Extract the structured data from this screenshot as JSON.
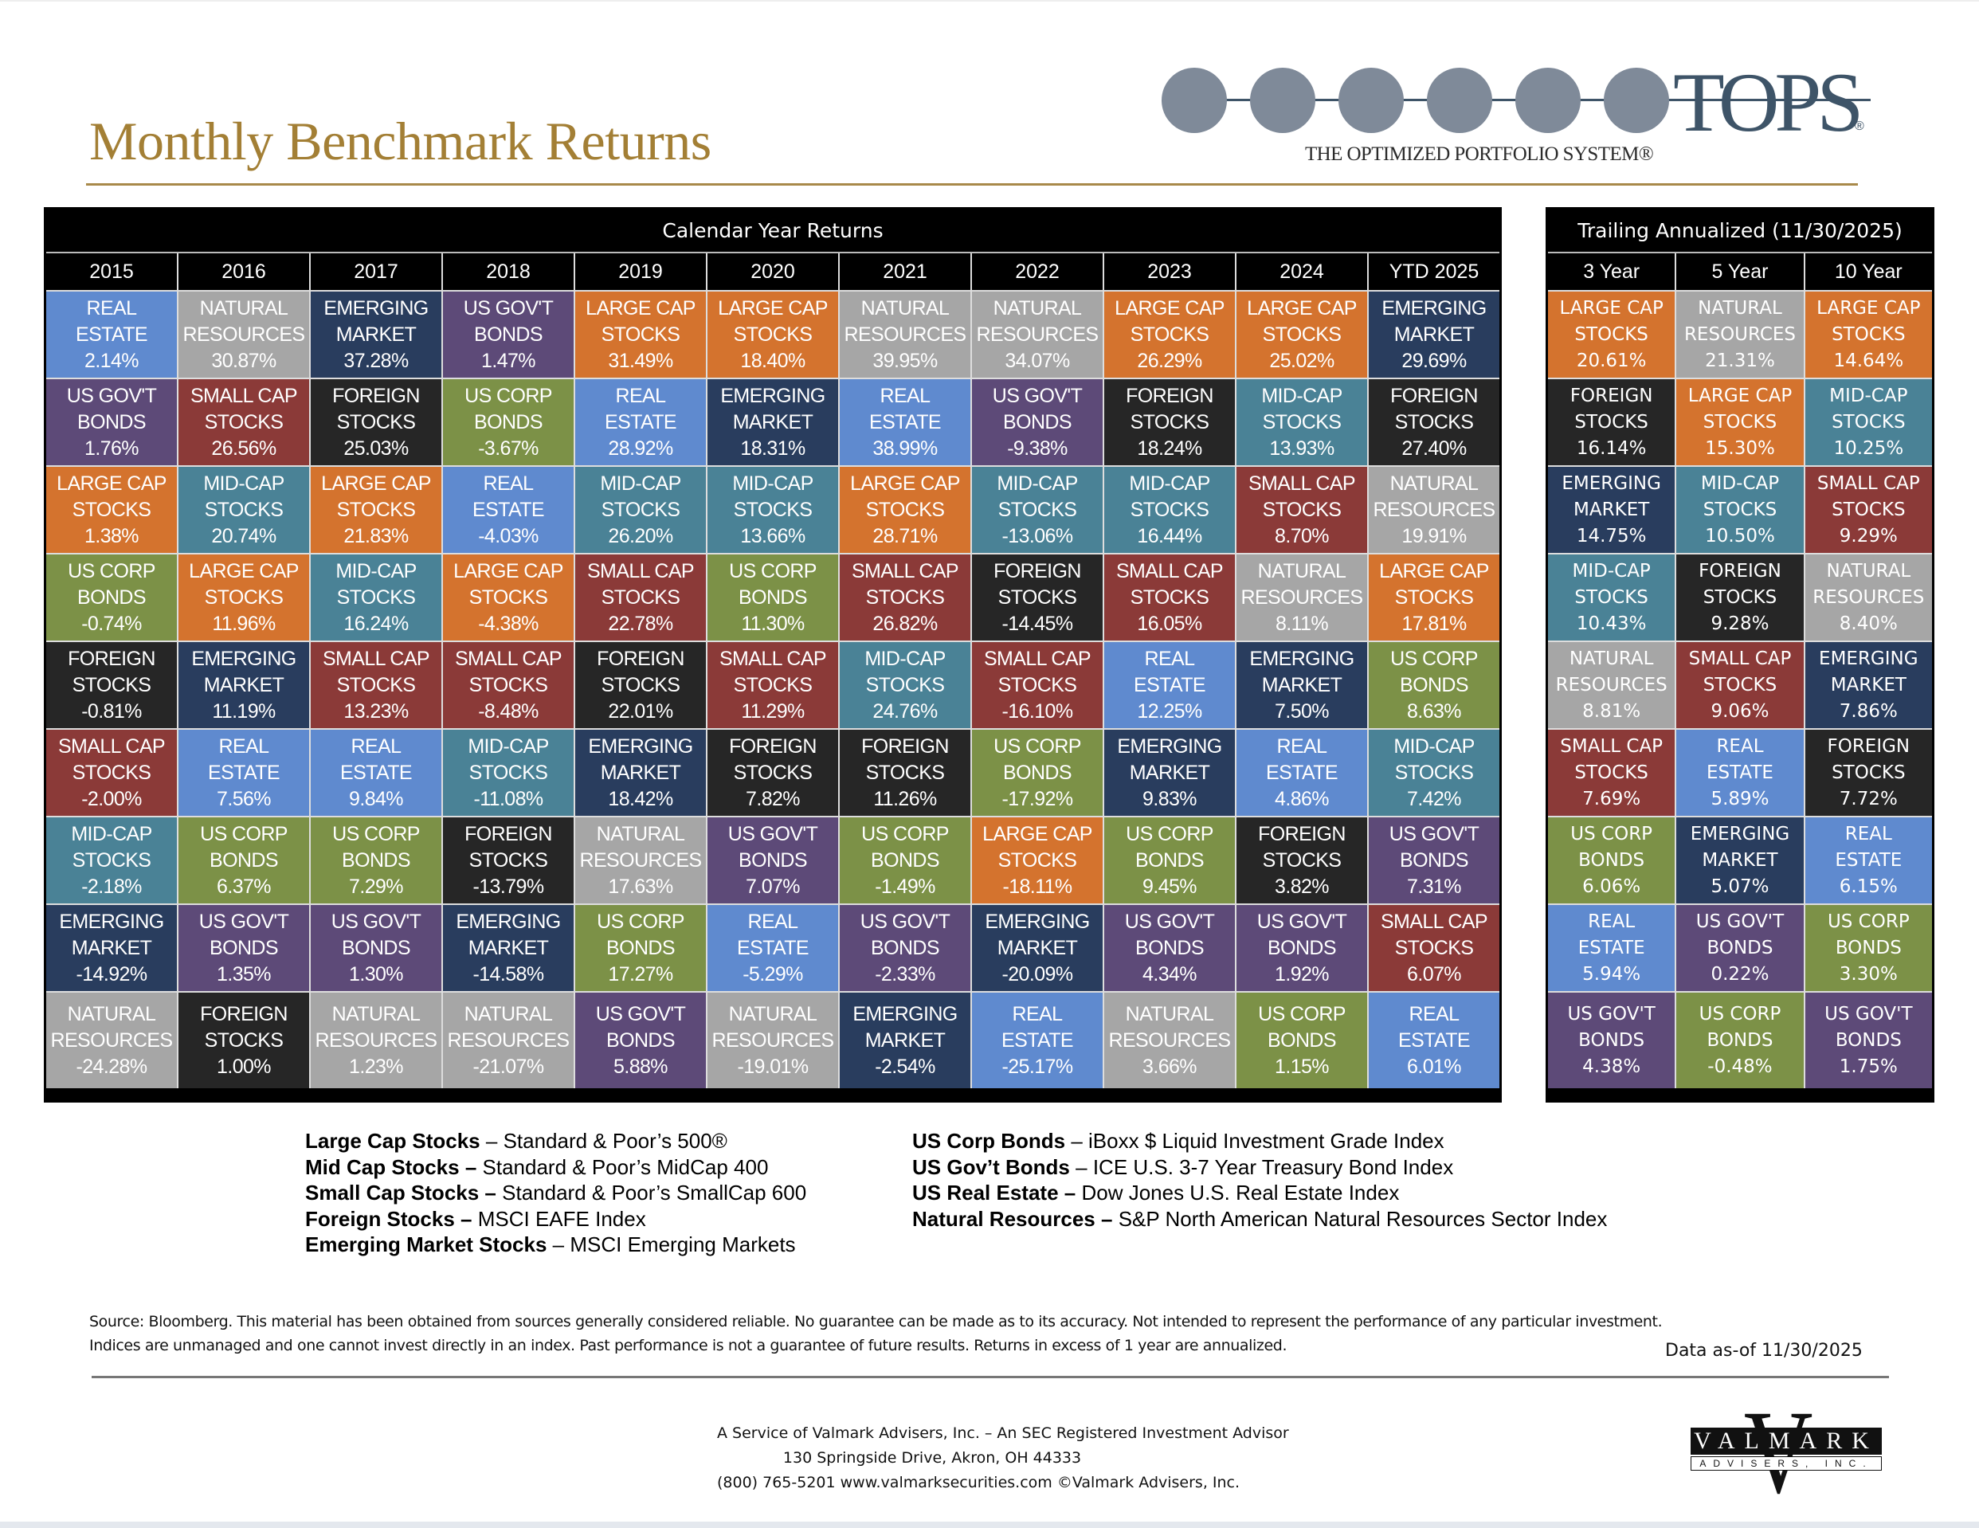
{
  "header": {
    "title": "Monthly Benchmark Returns",
    "logo": {
      "brand": "TOPS",
      "registered": "®",
      "tagline": "THE OPTIMIZED PORTFOLIO SYSTEM®"
    }
  },
  "colors": {
    "LARGE CAP STOCKS": "#D4732E",
    "MID-CAP STOCKS": "#4A8296",
    "SMALL CAP STOCKS": "#8B3A38",
    "FOREIGN STOCKS": "#262626",
    "EMERGING MARKET": "#293D5E",
    "US CORP BONDS": "#7C9147",
    "US GOV'T BONDS": "#5D4A78",
    "REAL ESTATE": "#5F8ACF",
    "NATURAL RESOURCES": "#A6A6A6",
    "title_gold": "#A37F35"
  },
  "calendar": {
    "title": "Calendar Year Returns",
    "years": [
      "2015",
      "2016",
      "2017",
      "2018",
      "2019",
      "2020",
      "2021",
      "2022",
      "2023",
      "2024",
      "YTD 2025"
    ],
    "columns": [
      [
        [
          "REAL",
          "ESTATE",
          "2.14%"
        ],
        [
          "US GOV'T",
          "BONDS",
          "1.76%"
        ],
        [
          "LARGE CAP",
          "STOCKS",
          "1.38%"
        ],
        [
          "US CORP",
          "BONDS",
          "-0.74%"
        ],
        [
          "FOREIGN",
          "STOCKS",
          "-0.81%"
        ],
        [
          "SMALL CAP",
          "STOCKS",
          "-2.00%"
        ],
        [
          "MID-CAP",
          "STOCKS",
          "-2.18%"
        ],
        [
          "EMERGING",
          "MARKET",
          "-14.92%"
        ],
        [
          "NATURAL",
          "RESOURCES",
          "-24.28%"
        ]
      ],
      [
        [
          "NATURAL",
          "RESOURCES",
          "30.87%"
        ],
        [
          "SMALL CAP",
          "STOCKS",
          "26.56%"
        ],
        [
          "MID-CAP",
          "STOCKS",
          "20.74%"
        ],
        [
          "LARGE CAP",
          "STOCKS",
          "11.96%"
        ],
        [
          "EMERGING",
          "MARKET",
          "11.19%"
        ],
        [
          "REAL",
          "ESTATE",
          "7.56%"
        ],
        [
          "US CORP",
          "BONDS",
          "6.37%"
        ],
        [
          "US GOV'T",
          "BONDS",
          "1.35%"
        ],
        [
          "FOREIGN",
          "STOCKS",
          "1.00%"
        ]
      ],
      [
        [
          "EMERGING",
          "MARKET",
          "37.28%"
        ],
        [
          "FOREIGN",
          "STOCKS",
          "25.03%"
        ],
        [
          "LARGE CAP",
          "STOCKS",
          "21.83%"
        ],
        [
          "MID-CAP",
          "STOCKS",
          "16.24%"
        ],
        [
          "SMALL CAP",
          "STOCKS",
          "13.23%"
        ],
        [
          "REAL",
          "ESTATE",
          "9.84%"
        ],
        [
          "US CORP",
          "BONDS",
          "7.29%"
        ],
        [
          "US GOV'T",
          "BONDS",
          "1.30%"
        ],
        [
          "NATURAL",
          "RESOURCES",
          "1.23%"
        ]
      ],
      [
        [
          "US GOV'T",
          "BONDS",
          "1.47%"
        ],
        [
          "US CORP",
          "BONDS",
          "-3.67%"
        ],
        [
          "REAL",
          "ESTATE",
          "-4.03%"
        ],
        [
          "LARGE CAP",
          "STOCKS",
          "-4.38%"
        ],
        [
          "SMALL CAP",
          "STOCKS",
          "-8.48%"
        ],
        [
          "MID-CAP",
          "STOCKS",
          "-11.08%"
        ],
        [
          "FOREIGN",
          "STOCKS",
          "-13.79%"
        ],
        [
          "EMERGING",
          "MARKET",
          "-14.58%"
        ],
        [
          "NATURAL",
          "RESOURCES",
          "-21.07%"
        ]
      ],
      [
        [
          "LARGE CAP",
          "STOCKS",
          "31.49%"
        ],
        [
          "REAL",
          "ESTATE",
          "28.92%"
        ],
        [
          "MID-CAP",
          "STOCKS",
          "26.20%"
        ],
        [
          "SMALL CAP",
          "STOCKS",
          "22.78%"
        ],
        [
          "FOREIGN",
          "STOCKS",
          "22.01%"
        ],
        [
          "EMERGING",
          "MARKET",
          "18.42%"
        ],
        [
          "NATURAL",
          "RESOURCES",
          "17.63%"
        ],
        [
          "US CORP",
          "BONDS",
          "17.27%"
        ],
        [
          "US GOV'T",
          "BONDS",
          "5.88%"
        ]
      ],
      [
        [
          "LARGE CAP",
          "STOCKS",
          "18.40%"
        ],
        [
          "EMERGING",
          "MARKET",
          "18.31%"
        ],
        [
          "MID-CAP",
          "STOCKS",
          "13.66%"
        ],
        [
          "US CORP",
          "BONDS",
          "11.30%"
        ],
        [
          "SMALL CAP",
          "STOCKS",
          "11.29%"
        ],
        [
          "FOREIGN",
          "STOCKS",
          "7.82%"
        ],
        [
          "US GOV'T",
          "BONDS",
          "7.07%"
        ],
        [
          "REAL",
          "ESTATE",
          "-5.29%"
        ],
        [
          "NATURAL",
          "RESOURCES",
          "-19.01%"
        ]
      ],
      [
        [
          "NATURAL",
          "RESOURCES",
          "39.95%"
        ],
        [
          "REAL",
          "ESTATE",
          "38.99%"
        ],
        [
          "LARGE CAP",
          "STOCKS",
          "28.71%"
        ],
        [
          "SMALL CAP",
          "STOCKS",
          "26.82%"
        ],
        [
          "MID-CAP",
          "STOCKS",
          "24.76%"
        ],
        [
          "FOREIGN",
          "STOCKS",
          "11.26%"
        ],
        [
          "US CORP",
          "BONDS",
          "-1.49%"
        ],
        [
          "US GOV'T",
          "BONDS",
          "-2.33%"
        ],
        [
          "EMERGING",
          "MARKET",
          "-2.54%"
        ]
      ],
      [
        [
          "NATURAL",
          "RESOURCES",
          "34.07%"
        ],
        [
          "US GOV'T",
          "BONDS",
          "-9.38%"
        ],
        [
          "MID-CAP",
          "STOCKS",
          "-13.06%"
        ],
        [
          "FOREIGN",
          "STOCKS",
          "-14.45%"
        ],
        [
          "SMALL CAP",
          "STOCKS",
          "-16.10%"
        ],
        [
          "US CORP",
          "BONDS",
          "-17.92%"
        ],
        [
          "LARGE CAP",
          "STOCKS",
          "-18.11%"
        ],
        [
          "EMERGING",
          "MARKET",
          "-20.09%"
        ],
        [
          "REAL",
          "ESTATE",
          "-25.17%"
        ]
      ],
      [
        [
          "LARGE CAP",
          "STOCKS",
          "26.29%"
        ],
        [
          "FOREIGN",
          "STOCKS",
          "18.24%"
        ],
        [
          "MID-CAP",
          "STOCKS",
          "16.44%"
        ],
        [
          "SMALL CAP",
          "STOCKS",
          "16.05%"
        ],
        [
          "REAL",
          "ESTATE",
          "12.25%"
        ],
        [
          "EMERGING",
          "MARKET",
          "9.83%"
        ],
        [
          "US CORP",
          "BONDS",
          "9.45%"
        ],
        [
          "US GOV'T",
          "BONDS",
          "4.34%"
        ],
        [
          "NATURAL",
          "RESOURCES",
          "3.66%"
        ]
      ],
      [
        [
          "LARGE CAP",
          "STOCKS",
          "25.02%"
        ],
        [
          "MID-CAP",
          "STOCKS",
          "13.93%"
        ],
        [
          "SMALL CAP",
          "STOCKS",
          "8.70%"
        ],
        [
          "NATURAL",
          "RESOURCES",
          "8.11%"
        ],
        [
          "EMERGING",
          "MARKET",
          "7.50%"
        ],
        [
          "REAL",
          "ESTATE",
          "4.86%"
        ],
        [
          "FOREIGN",
          "STOCKS",
          "3.82%"
        ],
        [
          "US GOV'T",
          "BONDS",
          "1.92%"
        ],
        [
          "US CORP",
          "BONDS",
          "1.15%"
        ]
      ],
      [
        [
          "EMERGING",
          "MARKET",
          "29.69%"
        ],
        [
          "FOREIGN",
          "STOCKS",
          "27.40%"
        ],
        [
          "NATURAL",
          "RESOURCES",
          "19.91%"
        ],
        [
          "LARGE CAP",
          "STOCKS",
          "17.81%"
        ],
        [
          "US CORP",
          "BONDS",
          "8.63%"
        ],
        [
          "MID-CAP",
          "STOCKS",
          "7.42%"
        ],
        [
          "US GOV'T",
          "BONDS",
          "7.31%"
        ],
        [
          "SMALL CAP",
          "STOCKS",
          "6.07%"
        ],
        [
          "REAL",
          "ESTATE",
          "6.01%"
        ]
      ]
    ]
  },
  "trailing": {
    "title": "Trailing Annualized (11/30/2025)",
    "periods": [
      "3 Year",
      "5 Year",
      "10 Year"
    ],
    "columns": [
      [
        [
          "LARGE CAP",
          "STOCKS",
          "20.61%"
        ],
        [
          "FOREIGN",
          "STOCKS",
          "16.14%"
        ],
        [
          "EMERGING",
          "MARKET",
          "14.75%"
        ],
        [
          "MID-CAP",
          "STOCKS",
          "10.43%"
        ],
        [
          "NATURAL",
          "RESOURCES",
          "8.81%"
        ],
        [
          "SMALL CAP",
          "STOCKS",
          "7.69%"
        ],
        [
          "US CORP",
          "BONDS",
          "6.06%"
        ],
        [
          "REAL",
          "ESTATE",
          "5.94%"
        ],
        [
          "US GOV'T",
          "BONDS",
          "4.38%"
        ]
      ],
      [
        [
          "NATURAL",
          "RESOURCES",
          "21.31%"
        ],
        [
          "LARGE CAP",
          "STOCKS",
          "15.30%"
        ],
        [
          "MID-CAP",
          "STOCKS",
          "10.50%"
        ],
        [
          "FOREIGN",
          "STOCKS",
          "9.28%"
        ],
        [
          "SMALL CAP",
          "STOCKS",
          "9.06%"
        ],
        [
          "REAL",
          "ESTATE",
          "5.89%"
        ],
        [
          "EMERGING",
          "MARKET",
          "5.07%"
        ],
        [
          "US GOV'T",
          "BONDS",
          "0.22%"
        ],
        [
          "US CORP",
          "BONDS",
          "-0.48%"
        ]
      ],
      [
        [
          "LARGE CAP",
          "STOCKS",
          "14.64%"
        ],
        [
          "MID-CAP",
          "STOCKS",
          "10.25%"
        ],
        [
          "SMALL CAP",
          "STOCKS",
          "9.29%"
        ],
        [
          "NATURAL",
          "RESOURCES",
          "8.40%"
        ],
        [
          "EMERGING",
          "MARKET",
          "7.86%"
        ],
        [
          "FOREIGN",
          "STOCKS",
          "7.72%"
        ],
        [
          "REAL",
          "ESTATE",
          "6.15%"
        ],
        [
          "US CORP",
          "BONDS",
          "3.30%"
        ],
        [
          "US GOV'T",
          "BONDS",
          "1.75%"
        ]
      ]
    ]
  },
  "legend": {
    "left": [
      {
        "name": "Large Cap Stocks",
        "sep": " – ",
        "index": "Standard & Poor’s 500®"
      },
      {
        "name": "Mid Cap Stocks –",
        "sep": " ",
        "index": "Standard & Poor’s MidCap 400"
      },
      {
        "name": "Small Cap Stocks –",
        "sep": " ",
        "index": "Standard & Poor’s SmallCap 600"
      },
      {
        "name": "Foreign Stocks –",
        "sep": " ",
        "index": "MSCI EAFE Index"
      },
      {
        "name": "Emerging Market Stocks",
        "sep": " – ",
        "index": "MSCI Emerging Markets"
      }
    ],
    "right": [
      {
        "name": "US Corp Bonds",
        "sep": " – ",
        "index": "iBoxx $ Liquid Investment Grade Index"
      },
      {
        "name": "US Gov’t Bonds",
        "sep": " – ",
        "index": "ICE U.S. 3-7 Year Treasury Bond Index"
      },
      {
        "name": "US Real Estate –",
        "sep": " ",
        "index": "Dow Jones U.S. Real Estate Index"
      },
      {
        "name": "Natural Resources –",
        "sep": " ",
        "index": "S&P North American Natural Resources Sector Index"
      }
    ]
  },
  "disclaimer": {
    "line1": "Source: Bloomberg. This material has been obtained from sources generally considered reliable. No guarantee can be made as to its accuracy. Not intended to represent the performance of any particular investment.",
    "line2": "Indices are unmanaged and one cannot invest directly in an index. Past performance is not a guarantee of future results.  Returns in excess of 1 year are annualized.",
    "as_of": "Data as-of 11/30/2025"
  },
  "footer": {
    "line1": "A Service of Valmark Advisers, Inc. – An SEC Registered Investment Advisor",
    "line2": "130 Springside Drive, Akron, OH  44333",
    "line3": "(800) 765-5201  www.valmarksecurities.com  ©Valmark Advisers, Inc.",
    "logo": {
      "letter": "V",
      "name": "VALMARK",
      "sub": "ADVISERS, INC."
    }
  }
}
